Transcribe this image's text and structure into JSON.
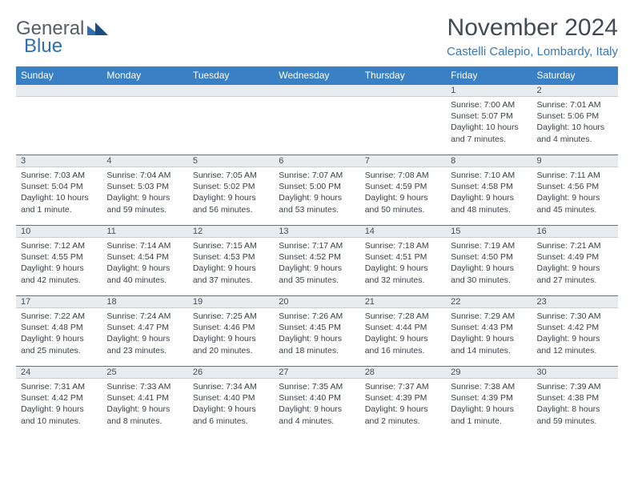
{
  "logo": {
    "text1": "General",
    "text2": "Blue"
  },
  "title": "November 2024",
  "location": "Castelli Calepio, Lombardy, Italy",
  "colors": {
    "header_bg": "#3a80c4",
    "header_fg": "#ffffff",
    "daynum_bg": "#e9ecef",
    "daynum_border_top": "#5c7590",
    "accent_blue": "#3a76b4",
    "title_color": "#424a53",
    "body_text": "#3b4046"
  },
  "weekdays": [
    "Sunday",
    "Monday",
    "Tuesday",
    "Wednesday",
    "Thursday",
    "Friday",
    "Saturday"
  ],
  "firstWeekdayIndex": 5,
  "days": [
    {
      "n": 1,
      "sunrise": "7:00 AM",
      "sunset": "5:07 PM",
      "daylight": "10 hours and 7 minutes."
    },
    {
      "n": 2,
      "sunrise": "7:01 AM",
      "sunset": "5:06 PM",
      "daylight": "10 hours and 4 minutes."
    },
    {
      "n": 3,
      "sunrise": "7:03 AM",
      "sunset": "5:04 PM",
      "daylight": "10 hours and 1 minute."
    },
    {
      "n": 4,
      "sunrise": "7:04 AM",
      "sunset": "5:03 PM",
      "daylight": "9 hours and 59 minutes."
    },
    {
      "n": 5,
      "sunrise": "7:05 AM",
      "sunset": "5:02 PM",
      "daylight": "9 hours and 56 minutes."
    },
    {
      "n": 6,
      "sunrise": "7:07 AM",
      "sunset": "5:00 PM",
      "daylight": "9 hours and 53 minutes."
    },
    {
      "n": 7,
      "sunrise": "7:08 AM",
      "sunset": "4:59 PM",
      "daylight": "9 hours and 50 minutes."
    },
    {
      "n": 8,
      "sunrise": "7:10 AM",
      "sunset": "4:58 PM",
      "daylight": "9 hours and 48 minutes."
    },
    {
      "n": 9,
      "sunrise": "7:11 AM",
      "sunset": "4:56 PM",
      "daylight": "9 hours and 45 minutes."
    },
    {
      "n": 10,
      "sunrise": "7:12 AM",
      "sunset": "4:55 PM",
      "daylight": "9 hours and 42 minutes."
    },
    {
      "n": 11,
      "sunrise": "7:14 AM",
      "sunset": "4:54 PM",
      "daylight": "9 hours and 40 minutes."
    },
    {
      "n": 12,
      "sunrise": "7:15 AM",
      "sunset": "4:53 PM",
      "daylight": "9 hours and 37 minutes."
    },
    {
      "n": 13,
      "sunrise": "7:17 AM",
      "sunset": "4:52 PM",
      "daylight": "9 hours and 35 minutes."
    },
    {
      "n": 14,
      "sunrise": "7:18 AM",
      "sunset": "4:51 PM",
      "daylight": "9 hours and 32 minutes."
    },
    {
      "n": 15,
      "sunrise": "7:19 AM",
      "sunset": "4:50 PM",
      "daylight": "9 hours and 30 minutes."
    },
    {
      "n": 16,
      "sunrise": "7:21 AM",
      "sunset": "4:49 PM",
      "daylight": "9 hours and 27 minutes."
    },
    {
      "n": 17,
      "sunrise": "7:22 AM",
      "sunset": "4:48 PM",
      "daylight": "9 hours and 25 minutes."
    },
    {
      "n": 18,
      "sunrise": "7:24 AM",
      "sunset": "4:47 PM",
      "daylight": "9 hours and 23 minutes."
    },
    {
      "n": 19,
      "sunrise": "7:25 AM",
      "sunset": "4:46 PM",
      "daylight": "9 hours and 20 minutes."
    },
    {
      "n": 20,
      "sunrise": "7:26 AM",
      "sunset": "4:45 PM",
      "daylight": "9 hours and 18 minutes."
    },
    {
      "n": 21,
      "sunrise": "7:28 AM",
      "sunset": "4:44 PM",
      "daylight": "9 hours and 16 minutes."
    },
    {
      "n": 22,
      "sunrise": "7:29 AM",
      "sunset": "4:43 PM",
      "daylight": "9 hours and 14 minutes."
    },
    {
      "n": 23,
      "sunrise": "7:30 AM",
      "sunset": "4:42 PM",
      "daylight": "9 hours and 12 minutes."
    },
    {
      "n": 24,
      "sunrise": "7:31 AM",
      "sunset": "4:42 PM",
      "daylight": "9 hours and 10 minutes."
    },
    {
      "n": 25,
      "sunrise": "7:33 AM",
      "sunset": "4:41 PM",
      "daylight": "9 hours and 8 minutes."
    },
    {
      "n": 26,
      "sunrise": "7:34 AM",
      "sunset": "4:40 PM",
      "daylight": "9 hours and 6 minutes."
    },
    {
      "n": 27,
      "sunrise": "7:35 AM",
      "sunset": "4:40 PM",
      "daylight": "9 hours and 4 minutes."
    },
    {
      "n": 28,
      "sunrise": "7:37 AM",
      "sunset": "4:39 PM",
      "daylight": "9 hours and 2 minutes."
    },
    {
      "n": 29,
      "sunrise": "7:38 AM",
      "sunset": "4:39 PM",
      "daylight": "9 hours and 1 minute."
    },
    {
      "n": 30,
      "sunrise": "7:39 AM",
      "sunset": "4:38 PM",
      "daylight": "8 hours and 59 minutes."
    }
  ],
  "labels": {
    "sunrise": "Sunrise:",
    "sunset": "Sunset:",
    "daylight": "Daylight:"
  }
}
